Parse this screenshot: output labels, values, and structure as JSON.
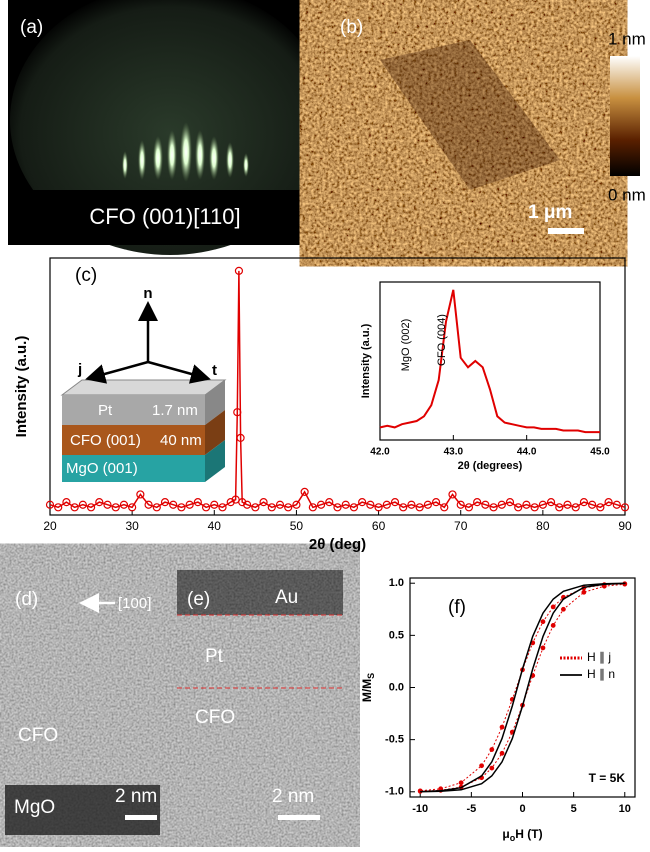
{
  "panels": {
    "a": {
      "label": "(a)",
      "caption": "CFO (001)[110]"
    },
    "b": {
      "label": "(b)",
      "scale_max": "1 nm",
      "scale_min": "0 nm",
      "scale_bar": "1 μm"
    },
    "c": {
      "label": "(c)",
      "axes": {
        "n": "n",
        "j": "j",
        "t": "t"
      },
      "layers": [
        {
          "name": "Pt",
          "thickness": "1.7 nm"
        },
        {
          "name": "CFO (001)",
          "thickness": "40 nm"
        },
        {
          "name": "MgO (001)"
        }
      ]
    },
    "d": {
      "label": "(d)",
      "direction": "[100]",
      "top": "CFO",
      "bottom": "MgO",
      "scale_bar": "2 nm"
    },
    "e": {
      "label": "(e)",
      "top": "Au",
      "middle": "Pt",
      "bottom": "CFO",
      "scale_bar": "2 nm"
    },
    "f": {
      "label": "(f)"
    }
  },
  "chart_data": [
    {
      "type": "line",
      "marker": "circle",
      "y_label": "Intensity (a.u.)",
      "x_label": "2θ (deg)",
      "x": [
        20,
        21,
        22,
        23,
        24,
        25,
        26,
        27,
        28,
        29,
        30,
        31,
        32,
        33,
        34,
        35,
        36,
        37,
        38,
        39,
        40,
        41,
        42,
        42.6,
        42.8,
        43.0,
        43.2,
        43.4,
        44,
        45,
        46,
        47,
        48,
        49,
        50,
        51,
        52,
        53,
        54,
        55,
        56,
        57,
        58,
        59,
        60,
        61,
        62,
        63,
        64,
        65,
        66,
        67,
        68,
        69,
        70,
        71,
        72,
        73,
        74,
        75,
        76,
        77,
        78,
        79,
        80,
        81,
        82,
        83,
        84,
        85,
        86,
        87,
        88,
        89,
        90
      ],
      "series": [
        {
          "color": "#e00000",
          "values": [
            4,
            3,
            5,
            3,
            4,
            3,
            5,
            4,
            3,
            4,
            3,
            8,
            4,
            3,
            5,
            4,
            3,
            4,
            5,
            3,
            4,
            3,
            5,
            6,
            40,
            95,
            30,
            5,
            4,
            3,
            5,
            3,
            4,
            3,
            4,
            9,
            3,
            4,
            5,
            3,
            4,
            3,
            5,
            4,
            3,
            4,
            5,
            3,
            4,
            3,
            4,
            5,
            3,
            8,
            4,
            3,
            5,
            4,
            3,
            4,
            5,
            3,
            4,
            3,
            4,
            5,
            3,
            4,
            3,
            5,
            4,
            3,
            5,
            4,
            3
          ]
        }
      ],
      "xlim": [
        20,
        90
      ],
      "ylim": [
        0,
        100
      ],
      "xticks": [
        20,
        30,
        40,
        50,
        60,
        70,
        80,
        90
      ]
    },
    {
      "type": "line",
      "y_label": "Intensity (a.u.)",
      "x_label": "2θ (degrees)",
      "annotations": [
        "MgO (002)",
        "CFO (004)"
      ],
      "x": [
        42.0,
        42.1,
        42.2,
        42.3,
        42.4,
        42.5,
        42.6,
        42.7,
        42.8,
        42.9,
        43.0,
        43.1,
        43.2,
        43.3,
        43.4,
        43.5,
        43.6,
        43.7,
        43.8,
        43.9,
        44.0,
        44.1,
        44.2,
        44.3,
        44.4,
        44.5,
        44.6,
        44.7,
        44.8,
        44.9,
        45.0
      ],
      "series": [
        {
          "color": "#e00000",
          "values": [
            8,
            9,
            8,
            10,
            11,
            12,
            15,
            22,
            38,
            75,
            95,
            52,
            46,
            50,
            46,
            32,
            15,
            11,
            10,
            9,
            8,
            8,
            7,
            7,
            7,
            6,
            6,
            6,
            5,
            5,
            5
          ]
        }
      ],
      "xlim": [
        42,
        45
      ],
      "ylim": [
        0,
        100
      ],
      "xticks": [
        {
          "value": 42,
          "label": "42.0"
        },
        {
          "value": 43,
          "label": "43.0"
        },
        {
          "value": 44,
          "label": "44.0"
        },
        {
          "value": 45,
          "label": "45.0"
        }
      ]
    },
    {
      "type": "line",
      "y_label": "M/M",
      "y_label_sub": "S",
      "x_label_pre": "μ",
      "x_label_sub": "o",
      "x_label": "H (T)",
      "annotations": [
        "T = 5K"
      ],
      "legend": "right",
      "x": [
        -10,
        -8,
        -6,
        -4,
        -3,
        -2,
        -1,
        0,
        1,
        2,
        3,
        4,
        6,
        8,
        10,
        10,
        8,
        6,
        4,
        3,
        2,
        1,
        0,
        -1,
        -2,
        -3,
        -4,
        -6,
        -8,
        -10
      ],
      "series": [
        {
          "name": "H ∥ j",
          "color": "#e00000",
          "marker": "dot",
          "values": [
            -0.995,
            -0.986,
            -0.955,
            -0.865,
            -0.773,
            -0.631,
            -0.428,
            -0.17,
            0.114,
            0.38,
            0.595,
            0.75,
            0.913,
            0.971,
            0.991,
            0.995,
            0.986,
            0.955,
            0.865,
            0.773,
            0.631,
            0.428,
            0.17,
            -0.114,
            -0.38,
            -0.595,
            -0.75,
            -0.913,
            -0.971,
            -0.991
          ]
        },
        {
          "name": "H ∥ n",
          "color": "#000000",
          "values": [
            -0.999,
            -0.995,
            -0.981,
            -0.922,
            -0.848,
            -0.713,
            -0.49,
            -0.177,
            0.177,
            0.49,
            0.713,
            0.848,
            0.961,
            0.991,
            0.998,
            0.999,
            0.995,
            0.981,
            0.922,
            0.848,
            0.713,
            0.49,
            0.177,
            -0.177,
            -0.49,
            -0.713,
            -0.848,
            -0.961,
            -0.991,
            -0.998
          ]
        }
      ],
      "xlim": [
        -11,
        11
      ],
      "ylim": [
        -1.05,
        1.05
      ],
      "xticks": [
        -10,
        -5,
        0,
        5,
        10
      ],
      "yticks": [
        {
          "value": -1,
          "label": "-1.0"
        },
        -0.5,
        {
          "value": 0,
          "label": "0.0"
        },
        0.5,
        {
          "value": 1,
          "label": "1.0"
        }
      ]
    }
  ]
}
